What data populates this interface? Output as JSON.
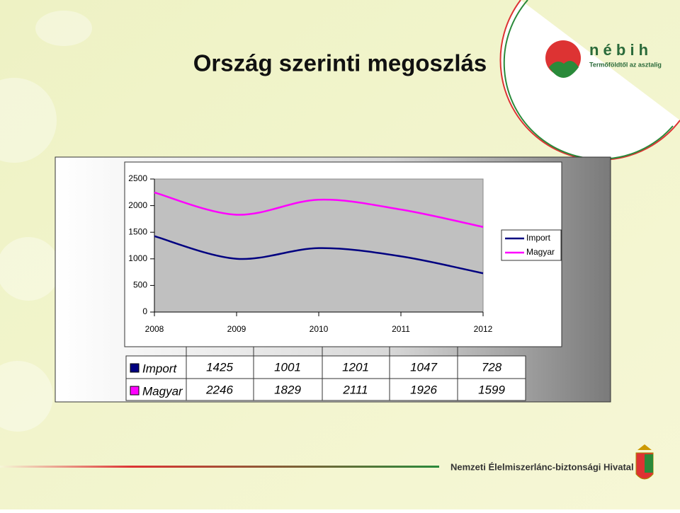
{
  "title": "Ország szerinti megoszlás",
  "logo": {
    "name": "n é b i h",
    "tagline": "Termőföldtől az asztalig"
  },
  "footer": "Nemzeti Élelmiszerlánc-biztonsági Hivatal",
  "chart_data": {
    "type": "line",
    "categories": [
      "2008",
      "2009",
      "2010",
      "2011",
      "2012"
    ],
    "series": [
      {
        "name": "Import",
        "color": "#000080",
        "values": [
          1425,
          1001,
          1201,
          1047,
          728
        ]
      },
      {
        "name": "Magyar",
        "color": "#ff00ff",
        "values": [
          2246,
          1829,
          2111,
          1926,
          1599
        ]
      }
    ],
    "ylim": [
      0,
      2500
    ],
    "yticks": [
      0,
      500,
      1000,
      1500,
      2000,
      2500
    ],
    "legend": "right",
    "data_table": true
  }
}
